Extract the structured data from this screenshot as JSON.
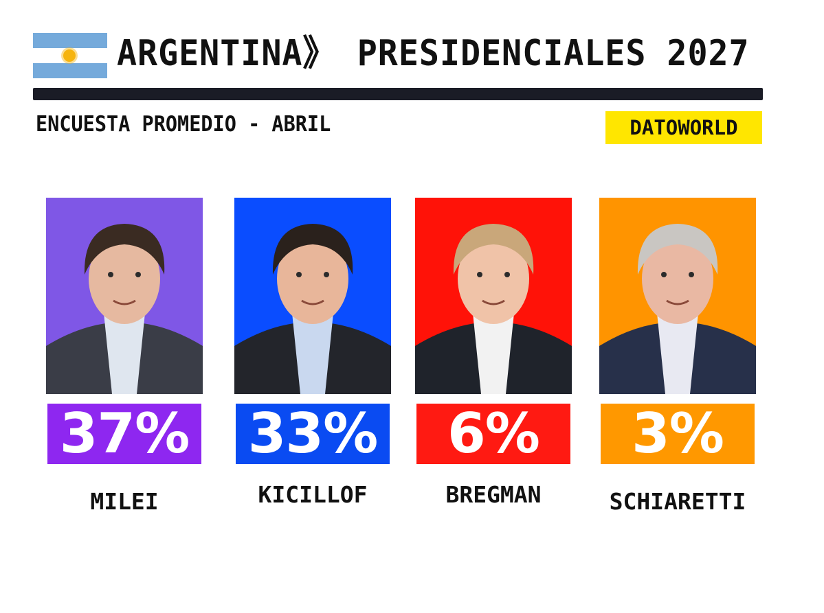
{
  "header": {
    "title": "ARGENTINA》 PRESIDENCIALES 2027",
    "subtitle": "ENCUESTA PROMEDIO - ABRIL",
    "source": "DATOWORLD",
    "flag_icon": "argentina-flag-icon",
    "flag_colors": {
      "band": "#75aadb",
      "white": "#ffffff",
      "sun": "#f6b40e"
    }
  },
  "chart_data": {
    "type": "bar",
    "title": "ARGENTINA》 PRESIDENCIALES 2027",
    "subtitle": "ENCUESTA PROMEDIO - ABRIL",
    "categories": [
      "MILEI",
      "KICILLOF",
      "BREGMAN",
      "SCHIARETTI"
    ],
    "values": [
      37,
      33,
      6,
      3
    ],
    "value_labels": [
      "37%",
      "33%",
      "6%",
      "3%"
    ],
    "colors": [
      "#8e27f0",
      "#0a4bf2",
      "#ff1a12",
      "#ff9800"
    ],
    "photo_backgrounds": [
      "#7f57e6",
      "#0a4dff",
      "#ff1208",
      "#ff9400"
    ],
    "unit": "%",
    "legend": "none",
    "grid": false
  }
}
